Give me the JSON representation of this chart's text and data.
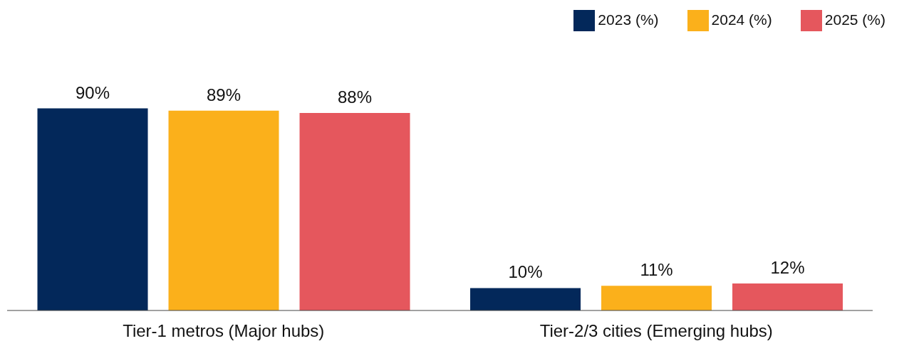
{
  "chart_data": {
    "type": "bar",
    "categories": [
      "Tier-1 metros (Major hubs)",
      "Tier-2/3 cities (Emerging hubs)"
    ],
    "series": [
      {
        "name": "2023 (%)",
        "color": "#03285a",
        "values": [
          90,
          10
        ],
        "value_labels": [
          "90%",
          "10%"
        ]
      },
      {
        "name": "2024 (%)",
        "color": "#fbb01b",
        "values": [
          89,
          11
        ],
        "value_labels": [
          "89%",
          "11%"
        ]
      },
      {
        "name": "2025 (%)",
        "color": "#e5575d",
        "values": [
          88,
          12
        ],
        "value_labels": [
          "88%",
          "12%"
        ]
      }
    ],
    "legend": "top right",
    "grid": false
  }
}
